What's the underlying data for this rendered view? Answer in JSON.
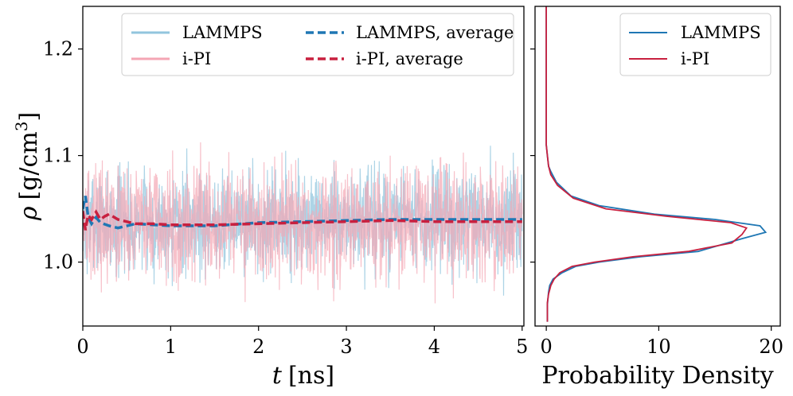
{
  "chart_data": [
    {
      "type": "line",
      "xlabel": "t [ns]",
      "xlabel_var": "t",
      "xlabel_unit": "[ns]",
      "ylabel": "ρ [g/cm³]",
      "ylabel_var": "ρ",
      "ylabel_unit": "[g/cm",
      "ylabel_sup": "3",
      "ylabel_close": "]",
      "xlim": [
        0,
        5.02
      ],
      "ylim": [
        0.94,
        1.24
      ],
      "xticks": [
        0,
        1,
        2,
        3,
        4,
        5
      ],
      "xtick_labels": [
        "0",
        "1",
        "2",
        "3",
        "4",
        "5"
      ],
      "yticks": [
        1.0,
        1.1,
        1.2
      ],
      "ytick_labels": [
        "1.0",
        "1.1",
        "1.2"
      ],
      "grid": false,
      "legend_position": "top-right",
      "series": [
        {
          "name": "LAMMPS",
          "color": "#92c5de",
          "style": "solid",
          "kind": "fluctuating",
          "mean": 1.038,
          "range": [
            0.962,
            1.118
          ]
        },
        {
          "name": "i-PI",
          "color": "#f4a6b4",
          "style": "solid",
          "kind": "fluctuating",
          "mean": 1.036,
          "range": [
            0.955,
            1.13
          ]
        },
        {
          "name": "LAMMPS, average",
          "color": "#1f77b4",
          "style": "dashed",
          "x": [
            0,
            0.03,
            0.06,
            0.1,
            0.15,
            0.2,
            0.3,
            0.4,
            0.6,
            0.8,
            1.0,
            1.5,
            2.0,
            2.5,
            3.0,
            3.5,
            4.0,
            4.5,
            5.0
          ],
          "values": [
            1.05,
            1.062,
            1.043,
            1.036,
            1.042,
            1.037,
            1.034,
            1.032,
            1.036,
            1.035,
            1.034,
            1.034,
            1.037,
            1.038,
            1.039,
            1.04,
            1.04,
            1.04,
            1.04
          ]
        },
        {
          "name": "i-PI, average",
          "color": "#c8203f",
          "style": "dashed",
          "x": [
            0,
            0.03,
            0.06,
            0.1,
            0.15,
            0.2,
            0.25,
            0.3,
            0.4,
            0.6,
            0.8,
            1.0,
            1.5,
            2.0,
            2.5,
            3.0,
            3.5,
            4.0,
            4.5,
            5.0
          ],
          "values": [
            1.048,
            1.03,
            1.044,
            1.04,
            1.047,
            1.04,
            1.043,
            1.045,
            1.04,
            1.036,
            1.036,
            1.035,
            1.035,
            1.036,
            1.037,
            1.038,
            1.039,
            1.038,
            1.038,
            1.038
          ]
        }
      ]
    },
    {
      "type": "line",
      "orientation": "horizontal",
      "xlabel": "Probability Density",
      "xlim": [
        -1,
        20.8
      ],
      "xticks": [
        0,
        10,
        20
      ],
      "xtick_labels": [
        "0",
        "10",
        "20"
      ],
      "ylim": [
        0.94,
        1.24
      ],
      "grid": false,
      "legend_position": "top-right",
      "series": [
        {
          "name": "LAMMPS",
          "color": "#1f77b4",
          "density": [
            0.1,
            0.1,
            0.2,
            0.3,
            0.6,
            1.4,
            2.6,
            4.7,
            8.4,
            13.5,
            17.4,
            19.5,
            19.0,
            15.0,
            9.6,
            4.7,
            2.2,
            0.9,
            0.4,
            0.2,
            0.1,
            0,
            0,
            0,
            0,
            0
          ],
          "rho": [
            0.944,
            0.96,
            0.972,
            0.978,
            0.984,
            0.99,
            0.996,
            1.0,
            1.005,
            1.01,
            1.022,
            1.028,
            1.034,
            1.04,
            1.045,
            1.053,
            1.062,
            1.075,
            1.085,
            1.09,
            1.1,
            1.11,
            1.14,
            1.17,
            1.2,
            1.24
          ]
        },
        {
          "name": "i-PI",
          "color": "#c8203f",
          "density": [
            0.1,
            0.1,
            0.2,
            0.4,
            0.7,
            1.2,
            2.3,
            4.3,
            7.7,
            12.6,
            16.5,
            17.4,
            17.8,
            16.4,
            10.7,
            5.3,
            2.4,
            1.0,
            0.4,
            0.2,
            0.1,
            0,
            0,
            0,
            0,
            0
          ],
          "rho": [
            0.944,
            0.962,
            0.97,
            0.978,
            0.984,
            0.99,
            0.996,
            1.0,
            1.005,
            1.01,
            1.018,
            1.026,
            1.032,
            1.037,
            1.043,
            1.05,
            1.06,
            1.072,
            1.082,
            1.09,
            1.1,
            1.11,
            1.14,
            1.17,
            1.2,
            1.24
          ]
        }
      ]
    }
  ]
}
